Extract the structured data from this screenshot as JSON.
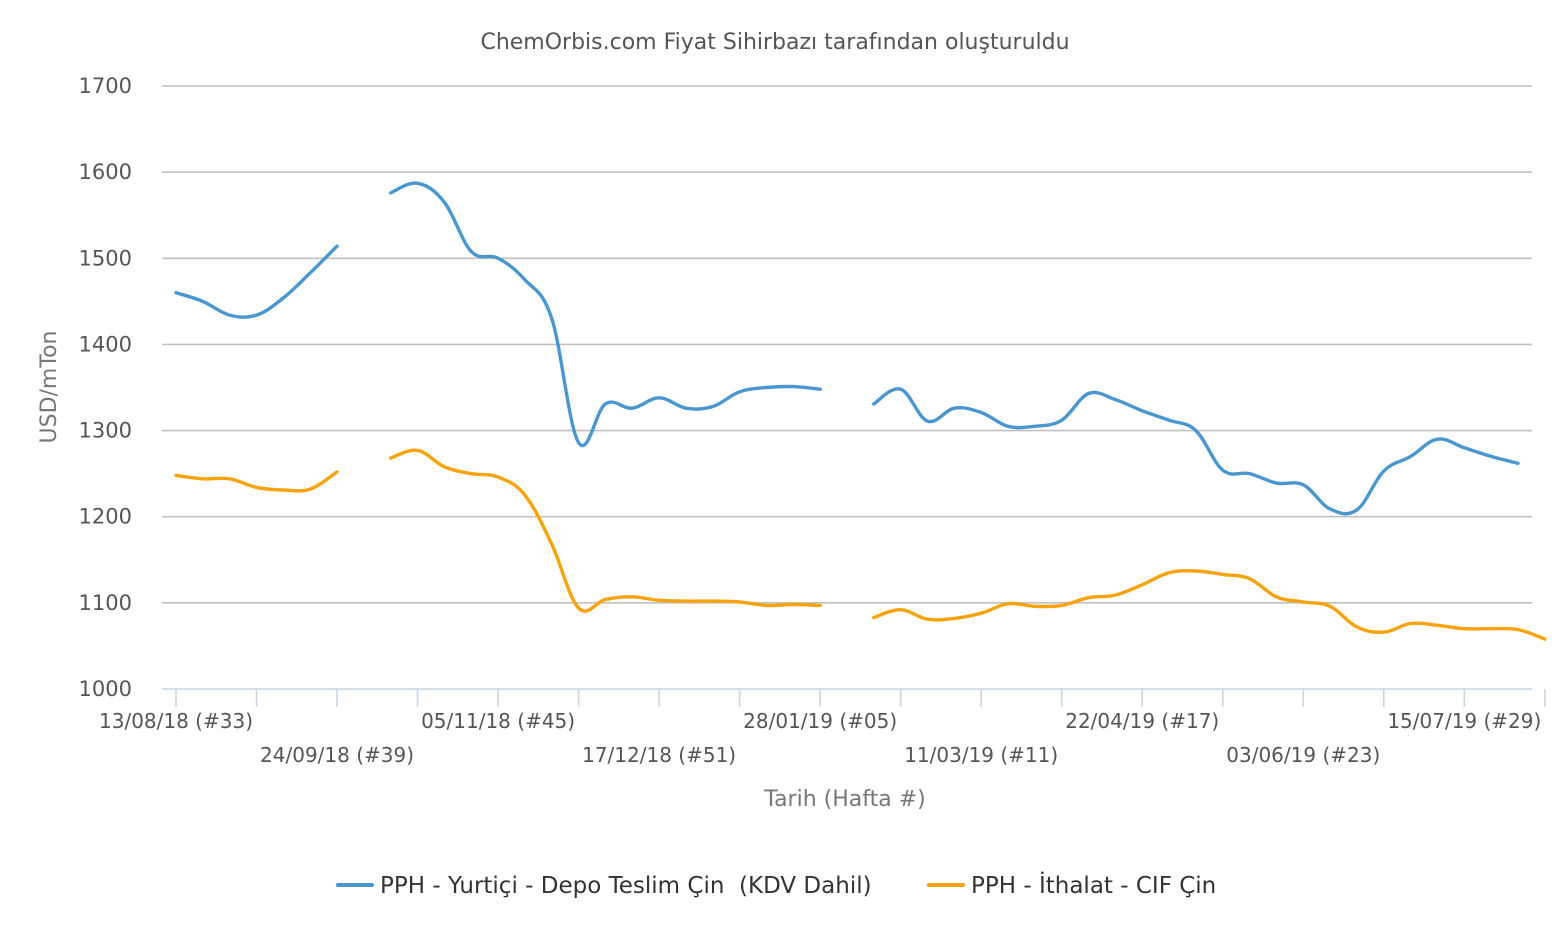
{
  "chart_data": {
    "type": "line",
    "title": "ChemOrbis.com Fiyat Sihirbazı tarafından oluşturuldu",
    "xlabel": "Tarih (Hafta #)",
    "ylabel": "USD/mTon",
    "ylim": [
      1000,
      1700
    ],
    "yticks": [
      "1000",
      "1100",
      "1200",
      "1300",
      "1400",
      "1500",
      "1600",
      "1700"
    ],
    "grid": true,
    "legend_position": "bottom-center",
    "x_tick_labels": [
      "13/08/18 (#33)",
      "24/09/18 (#39)",
      "05/11/18 (#45)",
      "17/12/18 (#51)",
      "28/01/19 (#05)",
      "11/03/19 (#11)",
      "22/04/19 (#17)",
      "03/06/19 (#23)",
      "15/07/19 (#29)"
    ],
    "x_tick_weeks": [
      0,
      6,
      12,
      18,
      24,
      30,
      36,
      42,
      48
    ],
    "x_range_weeks": [
      -2,
      50
    ],
    "series": [
      {
        "name": "PPH - Yurtiçi - Depo Teslim Çin  (KDV Dahil)",
        "color": "#4a97cf",
        "segments": [
          [
            [
              0,
              1460
            ],
            [
              1,
              1450
            ],
            [
              2,
              1434
            ],
            [
              3,
              1434
            ],
            [
              4,
              1454
            ],
            [
              5,
              1483
            ],
            [
              6,
              1514
            ]
          ],
          [
            [
              8,
              1576
            ],
            [
              9,
              1587
            ],
            [
              10,
              1565
            ],
            [
              11,
              1508
            ],
            [
              12,
              1500
            ],
            [
              13,
              1475
            ],
            [
              14,
              1430
            ],
            [
              15,
              1286
            ],
            [
              16,
              1331
            ],
            [
              17,
              1326
            ],
            [
              18,
              1338
            ],
            [
              19,
              1326
            ],
            [
              20,
              1328
            ],
            [
              21,
              1345
            ],
            [
              22,
              1350
            ],
            [
              23,
              1351
            ],
            [
              24,
              1348
            ]
          ],
          [
            [
              26,
              1331
            ],
            [
              27,
              1348
            ],
            [
              28,
              1311
            ],
            [
              29,
              1326
            ],
            [
              30,
              1321
            ],
            [
              31,
              1305
            ],
            [
              32,
              1305
            ],
            [
              33,
              1312
            ],
            [
              34,
              1343
            ],
            [
              35,
              1336
            ],
            [
              36,
              1323
            ],
            [
              37,
              1312
            ],
            [
              38,
              1300
            ],
            [
              39,
              1254
            ],
            [
              40,
              1250
            ],
            [
              41,
              1239
            ],
            [
              42,
              1237
            ],
            [
              43,
              1209
            ],
            [
              44,
              1208
            ],
            [
              45,
              1253
            ],
            [
              46,
              1270
            ],
            [
              47,
              1290
            ],
            [
              48,
              1280
            ],
            [
              49,
              1270
            ],
            [
              50,
              1262
            ]
          ]
        ]
      },
      {
        "name": "PPH - İthalat - CIF Çin",
        "color": "#f7a30d",
        "segments": [
          [
            [
              0,
              1248
            ],
            [
              1,
              1244
            ],
            [
              2,
              1244
            ],
            [
              3,
              1234
            ],
            [
              4,
              1231
            ],
            [
              5,
              1232
            ],
            [
              6,
              1252
            ]
          ],
          [
            [
              8,
              1268
            ],
            [
              9,
              1277
            ],
            [
              10,
              1258
            ],
            [
              11,
              1250
            ],
            [
              12,
              1246
            ],
            [
              13,
              1225
            ],
            [
              14,
              1168
            ],
            [
              15,
              1094
            ],
            [
              16,
              1104
            ],
            [
              17,
              1107
            ],
            [
              18,
              1103
            ],
            [
              19,
              1102
            ],
            [
              20,
              1102
            ],
            [
              21,
              1101
            ],
            [
              22,
              1097
            ],
            [
              23,
              1098
            ],
            [
              24,
              1097
            ]
          ],
          [
            [
              26,
              1083
            ],
            [
              27,
              1092
            ],
            [
              28,
              1081
            ],
            [
              29,
              1082
            ],
            [
              30,
              1088
            ],
            [
              31,
              1099
            ],
            [
              32,
              1096
            ],
            [
              33,
              1097
            ],
            [
              34,
              1106
            ],
            [
              35,
              1109
            ],
            [
              36,
              1121
            ],
            [
              37,
              1135
            ],
            [
              38,
              1137
            ],
            [
              39,
              1133
            ],
            [
              40,
              1128
            ],
            [
              41,
              1107
            ],
            [
              42,
              1101
            ],
            [
              43,
              1096
            ],
            [
              44,
              1072
            ],
            [
              45,
              1066
            ],
            [
              46,
              1076
            ],
            [
              47,
              1074
            ],
            [
              48,
              1070
            ],
            [
              49,
              1070
            ],
            [
              50,
              1069
            ],
            [
              51,
              1058
            ]
          ]
        ]
      }
    ]
  }
}
